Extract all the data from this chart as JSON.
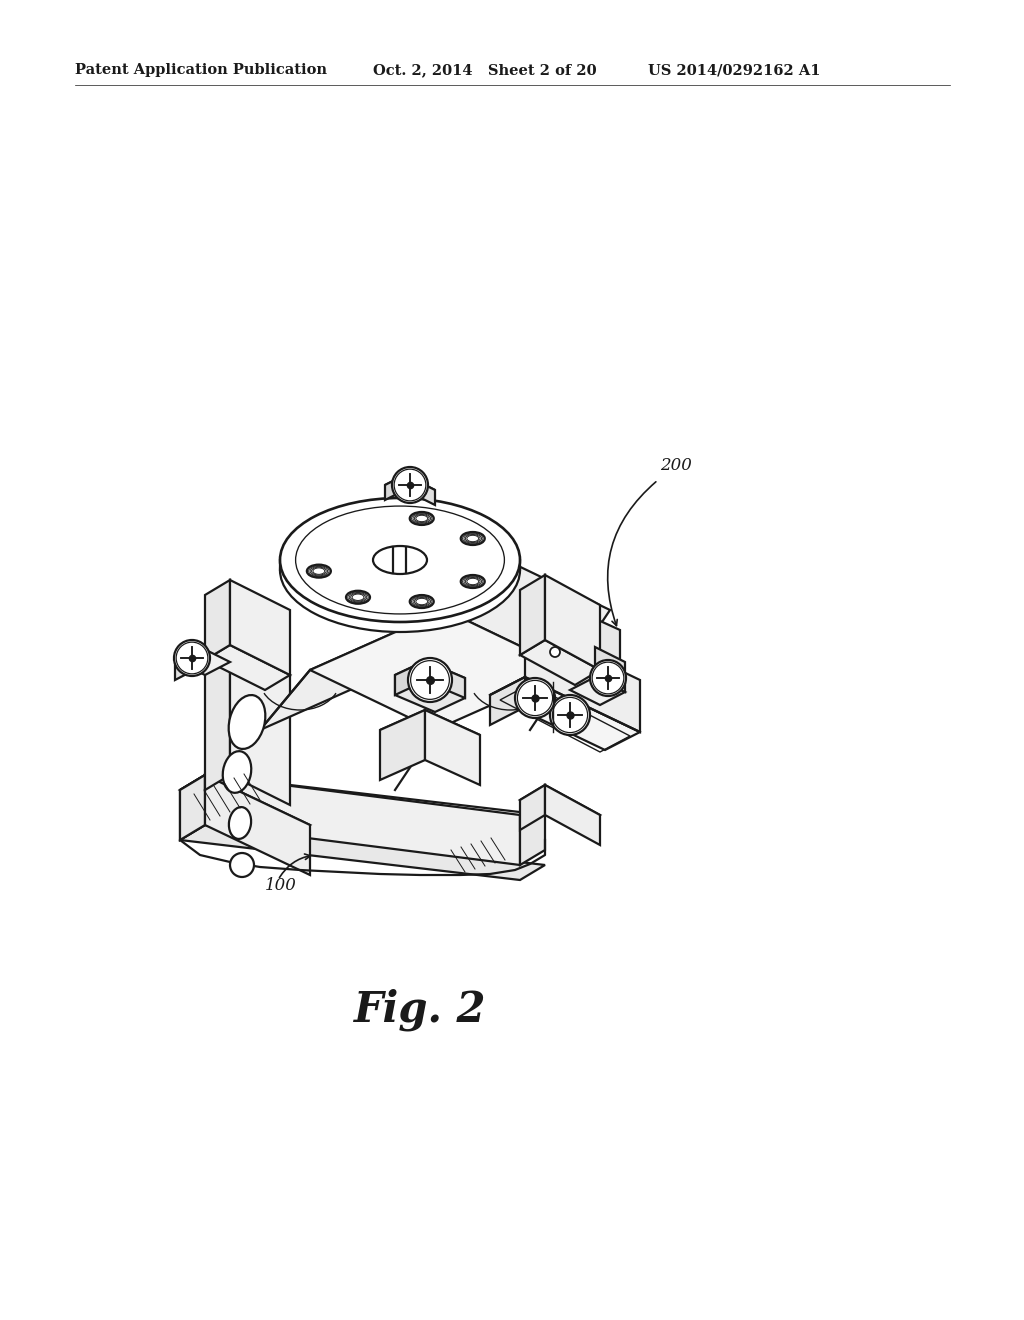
{
  "header_left": "Patent Application Publication",
  "header_middle": "Oct. 2, 2014   Sheet 2 of 20",
  "header_right": "US 2014/0292162 A1",
  "figure_caption": "Fig. 2",
  "label_100": "100",
  "label_200": "200",
  "background_color": "#ffffff",
  "line_color": "#1a1a1a",
  "header_fontsize": 10.5,
  "caption_fontsize": 30,
  "label_fontsize": 12,
  "drawing_scale": 1.0
}
